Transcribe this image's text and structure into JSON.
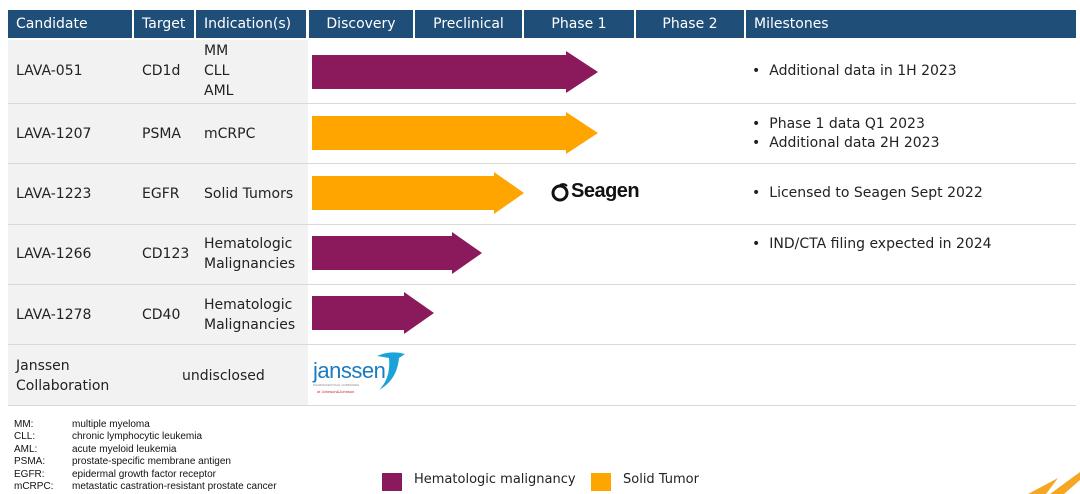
{
  "header": {
    "candidate": "Candidate",
    "target": "Target",
    "indication": "Indication(s)",
    "discovery": "Discovery",
    "preclinical": "Preclinical",
    "phase1": "Phase 1",
    "phase2": "Phase 2",
    "milestones": "Milestones"
  },
  "colors": {
    "header": "#1f4e79",
    "hematologic": "#8b1a5c",
    "solid": "#ffa500",
    "row_shade": "#f2f2f2"
  },
  "rows": [
    {
      "candidate": "LAVA-051",
      "target": "CD1d",
      "indications": [
        "MM",
        "CLL",
        "AML"
      ],
      "type": "hematologic",
      "progress": "Phase 1",
      "milestones": [
        "Additional data in 1H 2023"
      ]
    },
    {
      "candidate": "LAVA-1207",
      "target": "PSMA",
      "indications": [
        "mCRPC"
      ],
      "type": "solid",
      "progress": "Phase 1",
      "milestones": [
        "Phase 1 data Q1 2023",
        "Additional data 2H 2023"
      ]
    },
    {
      "candidate": "LAVA-1223",
      "target": "EGFR",
      "indications": [
        "Solid Tumors"
      ],
      "type": "solid",
      "progress": "Preclinical",
      "partner": "Seagen",
      "milestones": [
        "Licensed to Seagen Sept 2022"
      ]
    },
    {
      "candidate": "LAVA-1266",
      "target": "CD123",
      "indications": [
        "Hematologic",
        "Malignancies"
      ],
      "type": "hematologic",
      "progress": "Preclinical",
      "milestones": [
        "IND/CTA filing expected in 2024"
      ]
    },
    {
      "candidate": "LAVA-1278",
      "target": "CD40",
      "indications": [
        "Hematologic",
        "Malignancies"
      ],
      "type": "hematologic",
      "progress": "Preclinical",
      "milestones": []
    },
    {
      "candidate": [
        "Janssen",
        "Collaboration"
      ],
      "target": "undisclosed",
      "partner": "janssen",
      "partner_subtext": "PHARMACEUTICAL COMPANIES",
      "partner_subtext2": "of Johnson&Johnson"
    }
  ],
  "abbreviations": [
    {
      "key": "MM:",
      "value": "multiple myeloma"
    },
    {
      "key": "CLL:",
      "value": "chronic lymphocytic leukemia"
    },
    {
      "key": "AML:",
      "value": "acute myeloid leukemia"
    },
    {
      "key": "PSMA:",
      "value": "prostate-specific membrane antigen"
    },
    {
      "key": "EGFR:",
      "value": "epidermal growth factor receptor"
    },
    {
      "key": "mCRPC:",
      "value": "metastatic castration-resistant prostate cancer"
    }
  ],
  "legend": {
    "hematologic": "Hematologic malignancy",
    "solid": "Solid Tumor"
  }
}
